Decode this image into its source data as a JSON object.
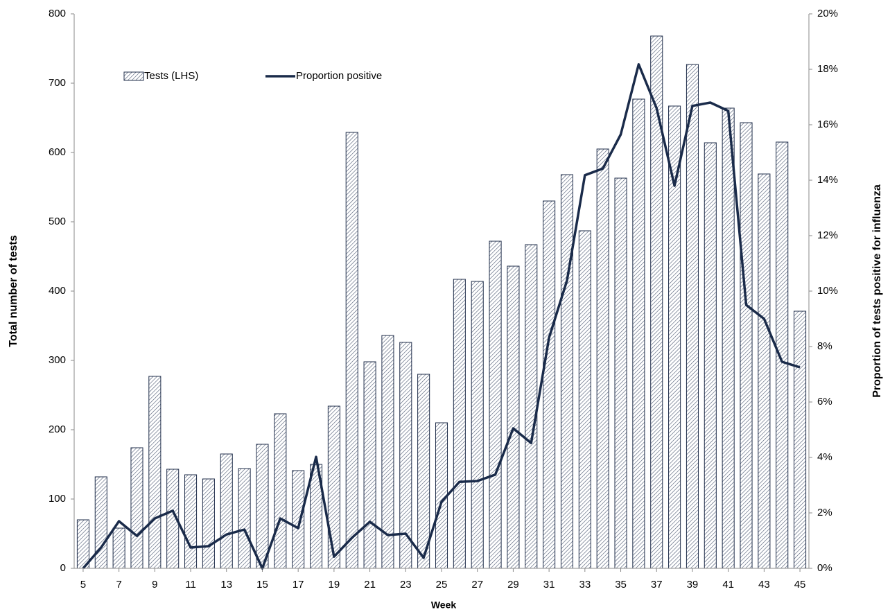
{
  "chart_data": {
    "type": "bar-line",
    "x_label": "Week",
    "y_label": "Total number of tests",
    "y2_label": "Proportion of tests positive for influenza",
    "x": [
      5,
      6,
      7,
      8,
      9,
      10,
      11,
      12,
      13,
      14,
      15,
      16,
      17,
      18,
      19,
      20,
      21,
      22,
      23,
      24,
      25,
      26,
      27,
      28,
      29,
      30,
      31,
      32,
      33,
      34,
      35,
      36,
      37,
      38,
      39,
      40,
      41,
      42,
      43,
      44,
      45
    ],
    "xlim": [
      4.5,
      45.5
    ],
    "xticks": [
      5,
      7,
      9,
      11,
      13,
      15,
      17,
      19,
      21,
      23,
      25,
      27,
      29,
      31,
      33,
      35,
      37,
      39,
      41,
      43,
      45
    ],
    "ylim": [
      0,
      800
    ],
    "yticks": [
      0,
      100,
      200,
      300,
      400,
      500,
      600,
      700,
      800
    ],
    "y2lim": [
      0,
      20
    ],
    "y2ticks": [
      {
        "value": 0,
        "label": "0%"
      },
      {
        "value": 2,
        "label": "2%"
      },
      {
        "value": 4,
        "label": "4%"
      },
      {
        "value": 6,
        "label": "6%"
      },
      {
        "value": 8,
        "label": "8%"
      },
      {
        "value": 10,
        "label": "10%"
      },
      {
        "value": 12,
        "label": "12%"
      },
      {
        "value": 14,
        "label": "14%"
      },
      {
        "value": 16,
        "label": "16%"
      },
      {
        "value": 18,
        "label": "18%"
      },
      {
        "value": 20,
        "label": "20%"
      }
    ],
    "grid": false,
    "legend": "top-left",
    "series": [
      {
        "name": "Tests (LHS)",
        "kind": "bar",
        "color": "#1f2d4a",
        "values": [
          70,
          132,
          58,
          174,
          277,
          143,
          135,
          129,
          165,
          144,
          179,
          223,
          141,
          150,
          234,
          629,
          298,
          336,
          326,
          280,
          210,
          417,
          414,
          472,
          436,
          467,
          530,
          568,
          487,
          605,
          563,
          677,
          768,
          667,
          727,
          614,
          664,
          643,
          569,
          615,
          371
        ]
      },
      {
        "name": "Proportion positive",
        "kind": "line",
        "axis": "y2",
        "color": "#1a2b4a",
        "values": [
          0,
          0.75,
          1.7,
          1.17,
          1.8,
          2.08,
          0.75,
          0.8,
          1.22,
          1.4,
          0,
          1.8,
          1.45,
          4.02,
          0.42,
          1.1,
          1.68,
          1.2,
          1.25,
          0.38,
          2.4,
          3.12,
          3.15,
          3.38,
          5.05,
          4.52,
          8.32,
          10.38,
          14.18,
          14.42,
          15.65,
          18.18,
          16.6,
          13.8,
          16.68,
          16.8,
          16.5,
          9.5,
          9.0,
          7.45,
          7.25
        ]
      }
    ]
  }
}
